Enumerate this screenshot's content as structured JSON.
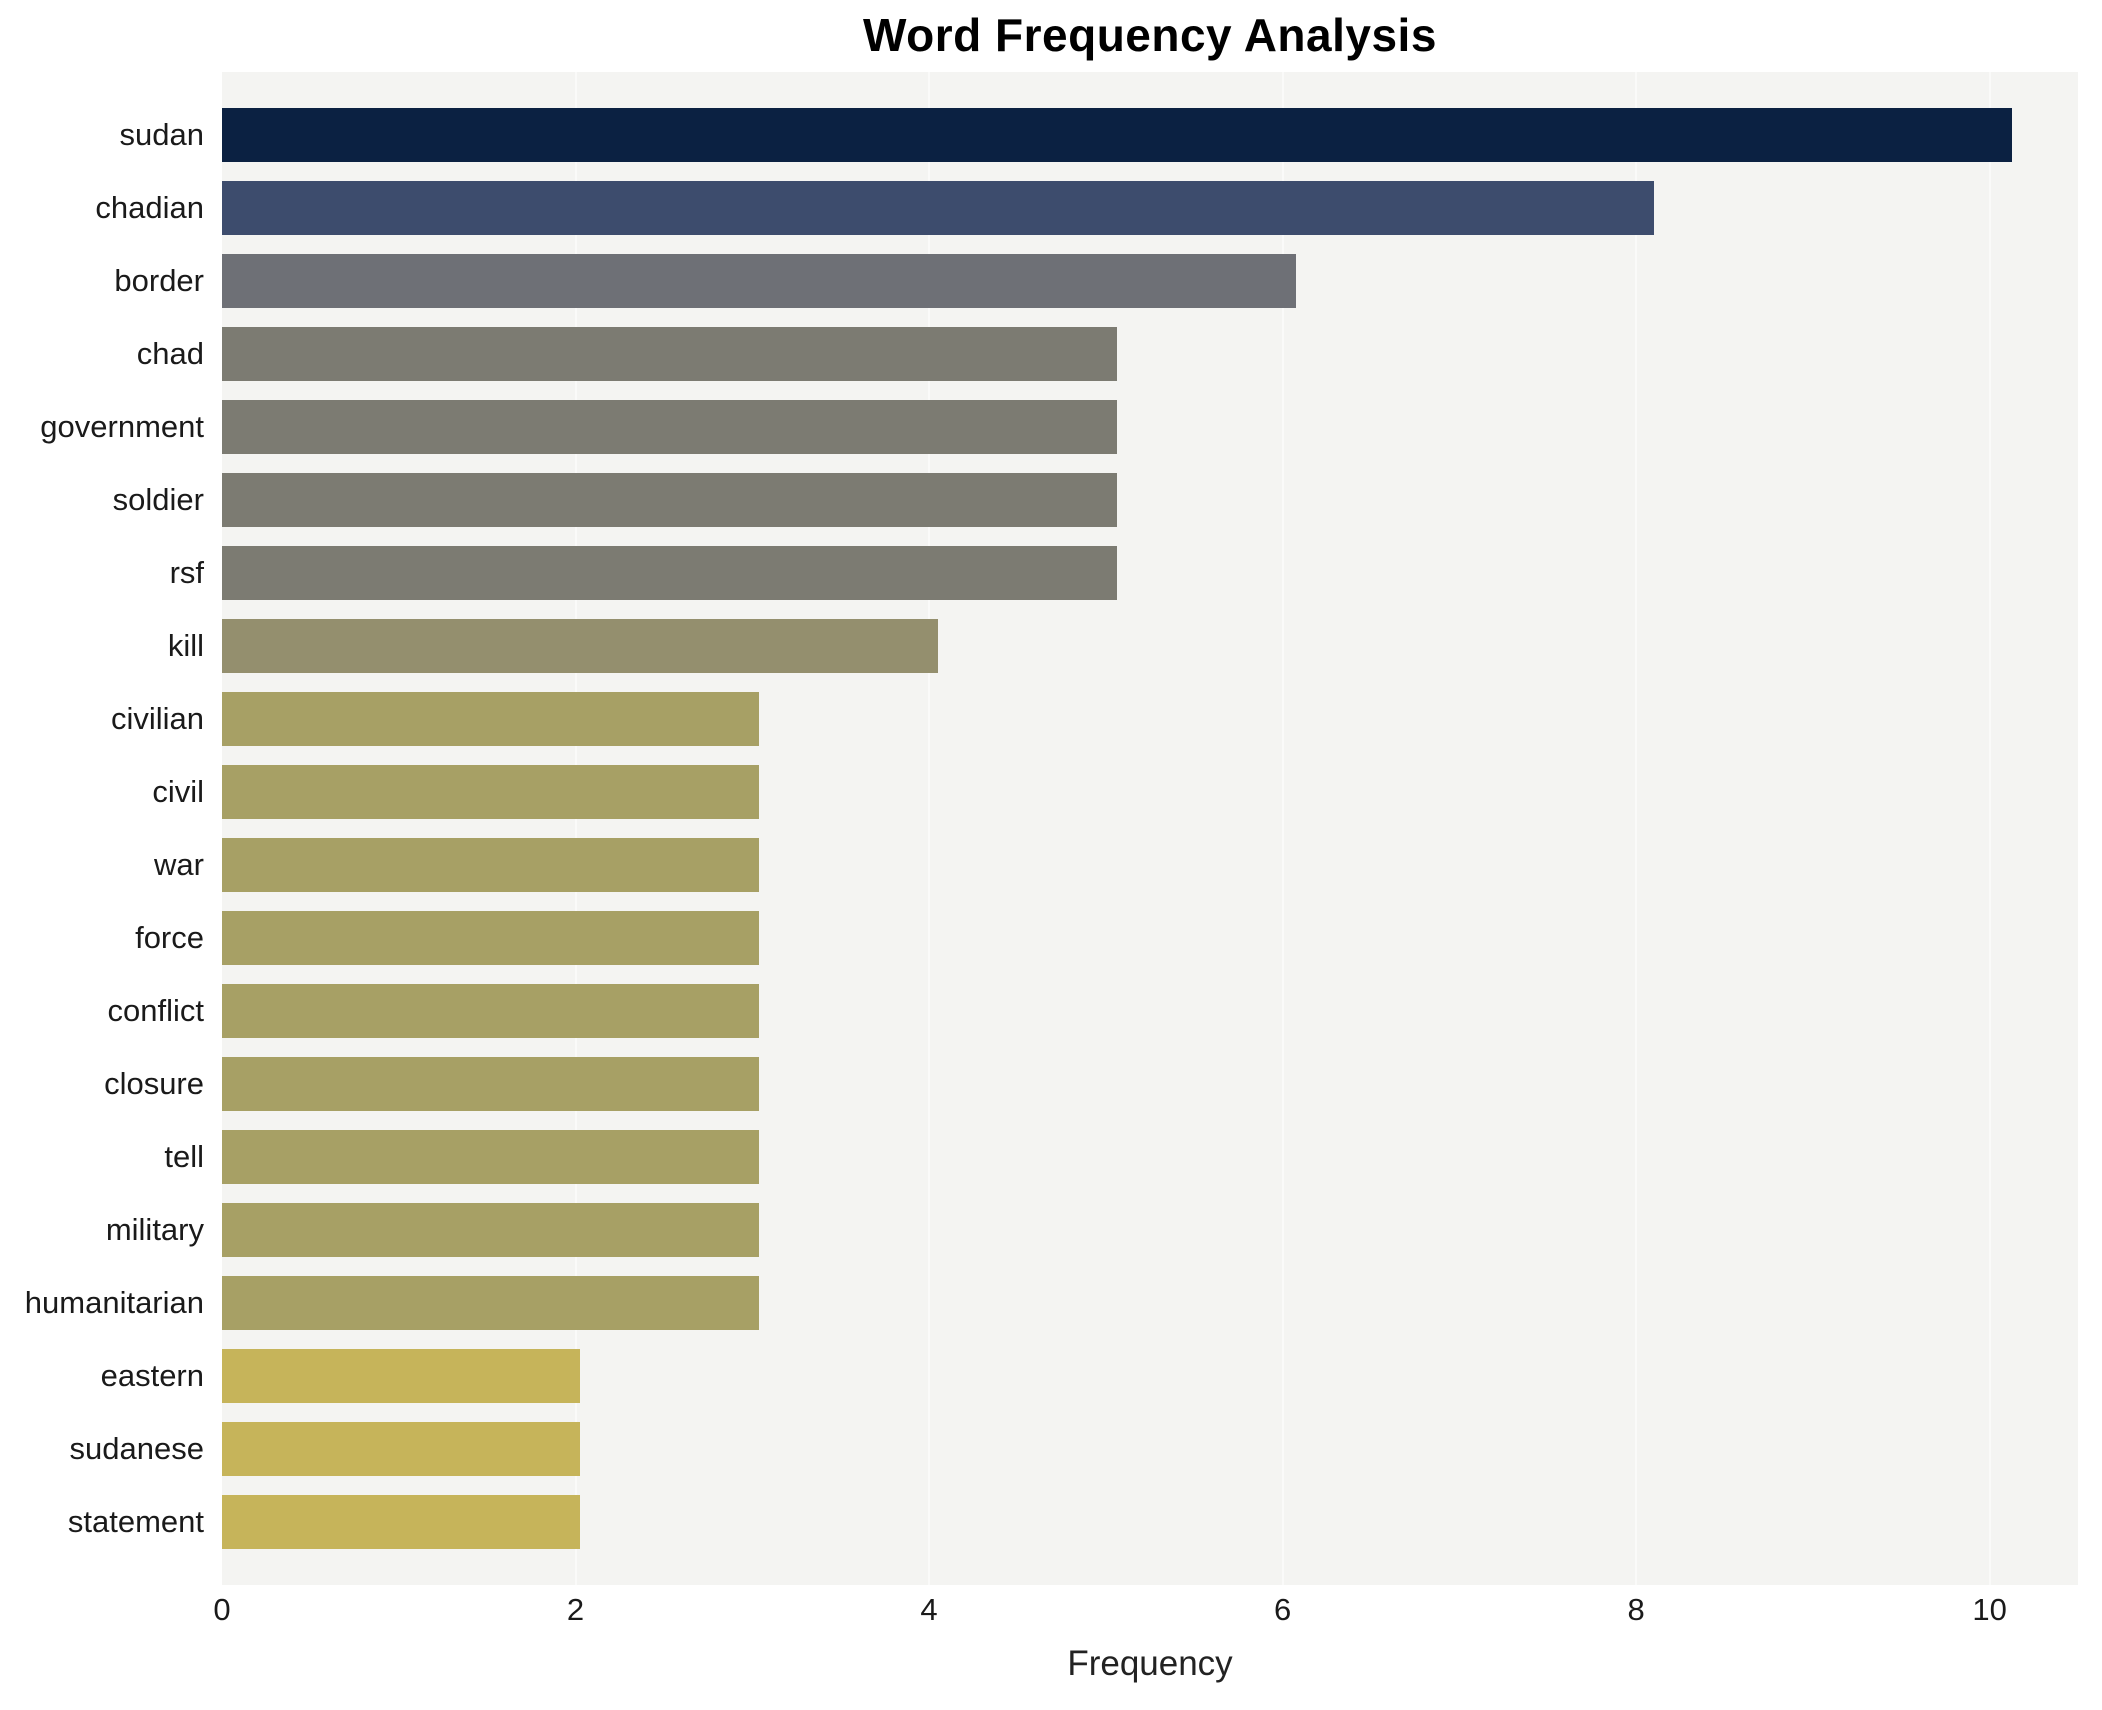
{
  "chart_data": {
    "type": "bar",
    "orientation": "horizontal",
    "title": "Word Frequency Analysis",
    "xlabel": "Frequency",
    "ylabel": "",
    "categories": [
      "sudan",
      "chadian",
      "border",
      "chad",
      "government",
      "soldier",
      "rsf",
      "kill",
      "civilian",
      "civil",
      "war",
      "force",
      "conflict",
      "closure",
      "tell",
      "military",
      "humanitarian",
      "eastern",
      "sudanese",
      "statement"
    ],
    "values": [
      10,
      8,
      6,
      5,
      5,
      5,
      5,
      4,
      3,
      3,
      3,
      3,
      3,
      3,
      3,
      3,
      3,
      2,
      2,
      2
    ],
    "bar_colors": [
      "#0b2142",
      "#3d4c6d",
      "#6e7076",
      "#7c7b72",
      "#7c7b72",
      "#7c7b72",
      "#7c7b72",
      "#948f6e",
      "#a7a065",
      "#a7a065",
      "#a7a065",
      "#a7a065",
      "#a7a065",
      "#a7a065",
      "#a7a065",
      "#a7a065",
      "#a7a065",
      "#c6b45a",
      "#c6b45a",
      "#c6b45a"
    ],
    "xlim": [
      0,
      10.5
    ],
    "xticks": [
      0,
      2,
      4,
      6,
      8,
      10
    ],
    "grid": false,
    "legend": "none",
    "plot_bg": "#f4f4f2",
    "page_bg": "#ffffff"
  }
}
